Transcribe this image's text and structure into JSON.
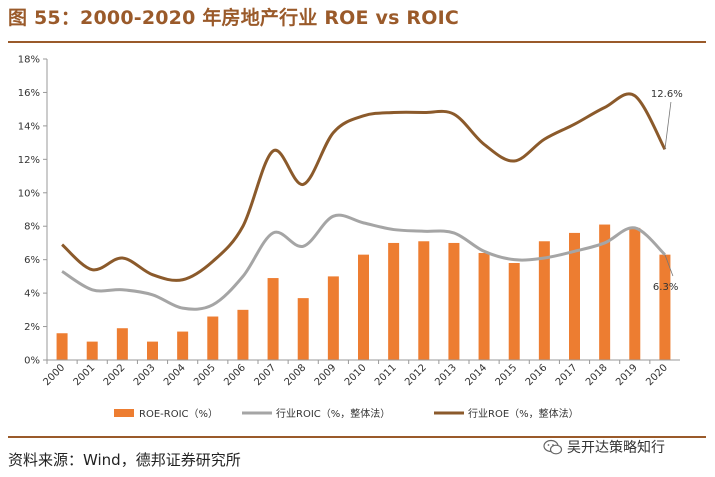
{
  "header": {
    "title": "图 55：2000-2020 年房地产行业 ROE vs ROIC"
  },
  "footer": {
    "source": "资料来源：Wind，德邦证券研究所",
    "watermark": "吴开达策略知行"
  },
  "colors": {
    "bar": "#ed7d31",
    "roic": "#a5a5a5",
    "roe": "#8b5a2b",
    "accent": "#9a5a2a"
  },
  "chart_data": {
    "type": "bar",
    "title": "2000-2020 年房地产行业 ROE vs ROIC",
    "xlabel": "",
    "ylabel": "",
    "categories": [
      "2000",
      "2001",
      "2002",
      "2003",
      "2004",
      "2005",
      "2006",
      "2007",
      "2008",
      "2009",
      "2010",
      "2011",
      "2012",
      "2013",
      "2014",
      "2015",
      "2016",
      "2017",
      "2018",
      "2019",
      "2020"
    ],
    "ylim": [
      0,
      18
    ],
    "yticks": [
      "0%",
      "2%",
      "4%",
      "6%",
      "8%",
      "10%",
      "12%",
      "14%",
      "16%",
      "18%"
    ],
    "series": [
      {
        "name": "ROE-ROIC（%）",
        "kind": "bar",
        "values": [
          1.6,
          1.1,
          1.9,
          1.1,
          1.7,
          2.6,
          3.0,
          4.9,
          3.7,
          5.0,
          6.3,
          7.0,
          7.1,
          7.0,
          6.4,
          5.8,
          7.1,
          7.6,
          8.1,
          7.9,
          6.3
        ]
      },
      {
        "name": "行业ROIC（%，整体法）",
        "kind": "line",
        "values": [
          5.3,
          4.2,
          4.2,
          3.9,
          3.1,
          3.3,
          5.0,
          7.6,
          6.8,
          8.6,
          8.2,
          7.8,
          7.7,
          7.6,
          6.5,
          6.0,
          6.1,
          6.5,
          7.0,
          7.9,
          6.3
        ]
      },
      {
        "name": "行业ROE（%，整体法）",
        "kind": "line",
        "values": [
          6.9,
          5.4,
          6.1,
          5.1,
          4.8,
          5.9,
          8.0,
          12.5,
          10.5,
          13.6,
          14.6,
          14.8,
          14.8,
          14.7,
          12.9,
          11.9,
          13.2,
          14.1,
          15.1,
          15.8,
          12.6
        ]
      }
    ],
    "annotations": [
      {
        "series": "行业ROE（%，整体法）",
        "label": "12.6%"
      },
      {
        "series": "行业ROIC（%，整体法）",
        "label": "6.3%"
      }
    ],
    "grid": false,
    "legend": "bottom"
  }
}
